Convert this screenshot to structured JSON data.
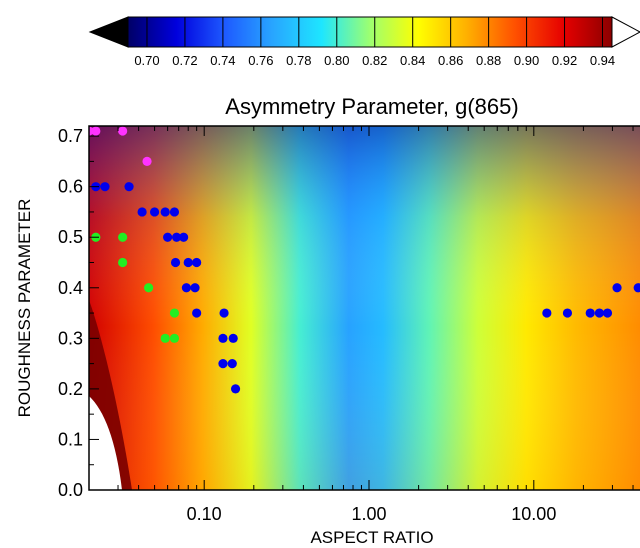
{
  "chart_data": {
    "type": "heatmap",
    "title": "Asymmetry Parameter, g(865)",
    "xlabel": "ASPECT RATIO",
    "ylabel": "ROUGHNESS PARAMETER",
    "x_scale": "log",
    "xlim": [
      0.02,
      50
    ],
    "ylim": [
      0,
      0.72
    ],
    "x_ticks": [
      0.1,
      1,
      10
    ],
    "x_tick_labels": [
      "0.10",
      "1.00",
      "10.00"
    ],
    "y_ticks": [
      0,
      0.1,
      0.2,
      0.3,
      0.4,
      0.5,
      0.6,
      0.7
    ],
    "y_tick_labels": [
      "0.0",
      "0.1",
      "0.2",
      "0.3",
      "0.4",
      "0.5",
      "0.6",
      "0.7"
    ],
    "colorbar": {
      "min": 0.69,
      "max": 0.945,
      "ticks": [
        0.7,
        0.72,
        0.74,
        0.76,
        0.78,
        0.8,
        0.82,
        0.84,
        0.86,
        0.88,
        0.9,
        0.92,
        0.94
      ],
      "tick_labels": [
        "0.70",
        "0.72",
        "0.74",
        "0.76",
        "0.78",
        "0.80",
        "0.82",
        "0.84",
        "0.86",
        "0.88",
        "0.90",
        "0.92",
        "0.94"
      ],
      "extend": "both",
      "colors": [
        "#000066",
        "#0000dd",
        "#1e5aff",
        "#28a6ff",
        "#1ee6ff",
        "#9dff70",
        "#ffff00",
        "#ffb000",
        "#ff5000",
        "#e60000",
        "#8b0000"
      ]
    },
    "field_approx": [
      {
        "x": 0.02,
        "y": 0.0,
        "g": 0.94
      },
      {
        "x": 0.05,
        "y": 0.3,
        "g": 0.89
      },
      {
        "x": 0.2,
        "y": 0.35,
        "g": 0.84
      },
      {
        "x": 0.9,
        "y": 0.2,
        "g": 0.77
      },
      {
        "x": 0.9,
        "y": 0.7,
        "g": 0.71
      },
      {
        "x": 5,
        "y": 0.35,
        "g": 0.82
      },
      {
        "x": 30,
        "y": 0.1,
        "g": 0.87
      }
    ],
    "series": [
      {
        "color": "#0000ee",
        "points": [
          {
            "x": 0.022,
            "y": 0.6
          },
          {
            "x": 0.025,
            "y": 0.6
          },
          {
            "x": 0.035,
            "y": 0.6
          },
          {
            "x": 0.042,
            "y": 0.55
          },
          {
            "x": 0.05,
            "y": 0.55
          },
          {
            "x": 0.058,
            "y": 0.55
          },
          {
            "x": 0.066,
            "y": 0.55
          },
          {
            "x": 0.06,
            "y": 0.5
          },
          {
            "x": 0.068,
            "y": 0.5
          },
          {
            "x": 0.075,
            "y": 0.5
          },
          {
            "x": 0.067,
            "y": 0.45
          },
          {
            "x": 0.08,
            "y": 0.45
          },
          {
            "x": 0.09,
            "y": 0.45
          },
          {
            "x": 0.078,
            "y": 0.4
          },
          {
            "x": 0.088,
            "y": 0.4
          },
          {
            "x": 0.09,
            "y": 0.35
          },
          {
            "x": 0.132,
            "y": 0.35
          },
          {
            "x": 0.13,
            "y": 0.3
          },
          {
            "x": 0.15,
            "y": 0.3
          },
          {
            "x": 0.13,
            "y": 0.25
          },
          {
            "x": 0.148,
            "y": 0.25
          },
          {
            "x": 0.155,
            "y": 0.2
          },
          {
            "x": 12,
            "y": 0.35
          },
          {
            "x": 16,
            "y": 0.35
          },
          {
            "x": 22,
            "y": 0.35
          },
          {
            "x": 25,
            "y": 0.35
          },
          {
            "x": 28,
            "y": 0.35
          },
          {
            "x": 32,
            "y": 0.4
          },
          {
            "x": 43,
            "y": 0.4
          }
        ]
      },
      {
        "color": "#22ee22",
        "points": [
          {
            "x": 0.022,
            "y": 0.5
          },
          {
            "x": 0.032,
            "y": 0.5
          },
          {
            "x": 0.032,
            "y": 0.45
          },
          {
            "x": 0.046,
            "y": 0.4
          },
          {
            "x": 0.066,
            "y": 0.35
          },
          {
            "x": 0.058,
            "y": 0.3
          },
          {
            "x": 0.066,
            "y": 0.3
          }
        ]
      },
      {
        "color": "#ff33ff",
        "points": [
          {
            "x": 0.02,
            "y": 0.71
          },
          {
            "x": 0.022,
            "y": 0.71
          },
          {
            "x": 0.032,
            "y": 0.71
          },
          {
            "x": 0.045,
            "y": 0.65
          }
        ]
      }
    ]
  }
}
